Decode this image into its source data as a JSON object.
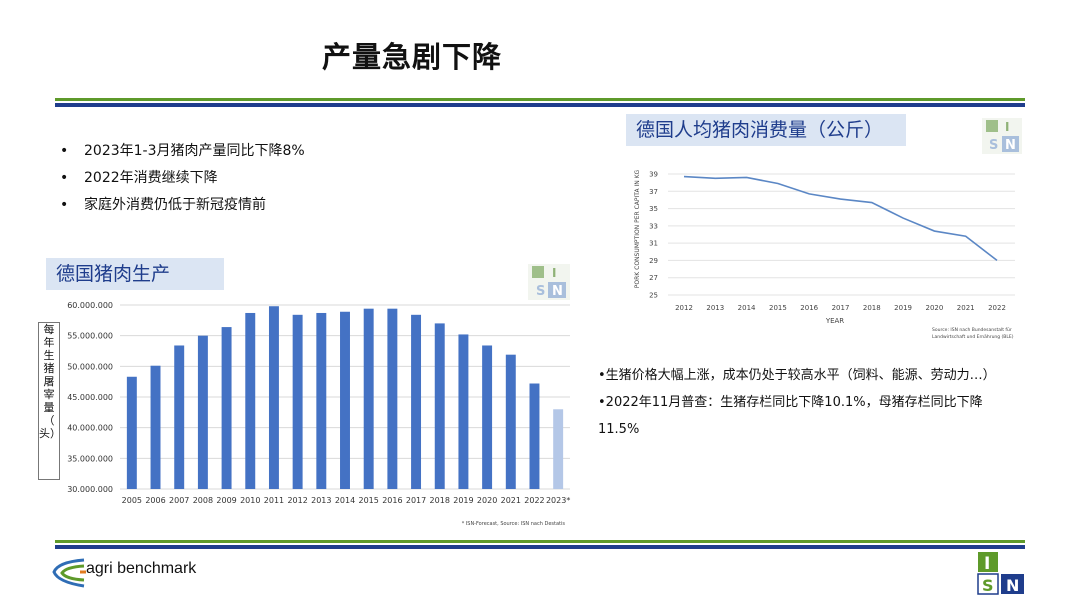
{
  "title": "产量急剧下降",
  "bullets": [
    "2023年1-3月猪肉产量同比下降8%",
    "2022年消费继续下降",
    "家庭外消费仍低于新冠疫情前"
  ],
  "right_bullets": {
    "line1": "•生猪价格大幅上涨，成本仍处于较高水平（饲料、能源、劳动力…）",
    "line2a": "•2022年11月普查：生猪存栏同比下降10.1%，母猪存栏同比下降",
    "line2b": "11.5%"
  },
  "footer": {
    "brand": "agri benchmark"
  },
  "colors": {
    "green": "#5e9a2a",
    "blue": "#1f3d8c",
    "bar": "#4472c4",
    "bar_forecast": "#b4c7e7",
    "label_bg": "#dbe5f3"
  },
  "chart_data": [
    {
      "type": "bar",
      "label": "德国猪肉生产",
      "ylabel": "每年生猪屠宰量（头）",
      "ylabel_chars": [
        "每",
        "年",
        "生",
        "猪",
        "屠",
        "宰",
        "量",
        "（",
        "头）"
      ],
      "categories": [
        "2005",
        "2006",
        "2007",
        "2008",
        "2009",
        "2010",
        "2011",
        "2012",
        "2013",
        "2014",
        "2015",
        "2016",
        "2017",
        "2018",
        "2019",
        "2020",
        "2021",
        "2022",
        "2023*"
      ],
      "values": [
        48300000,
        50100000,
        53400000,
        55000000,
        56400000,
        58700000,
        59800000,
        58400000,
        58700000,
        58900000,
        59400000,
        59400000,
        58400000,
        57000000,
        55200000,
        53400000,
        51900000,
        47200000,
        43000000
      ],
      "forecast_index": 18,
      "ylim": [
        30000000,
        60000000
      ],
      "yticks": [
        "30.000.000",
        "35.000.000",
        "40.000.000",
        "45.000.000",
        "50.000.000",
        "55.000.000",
        "60.000.000"
      ],
      "note": "* ISN-Forecast, Source: ISN nach Destatis",
      "grid": true
    },
    {
      "type": "line",
      "label": "德国人均猪肉消费量（公斤）",
      "xlabel": "YEAR",
      "ylabel": "PORK CONSUMPTION PER CAPITA IN KG",
      "x": [
        "2012",
        "2013",
        "2014",
        "2015",
        "2016",
        "2017",
        "2018",
        "2019",
        "2020",
        "2021",
        "2022"
      ],
      "y": [
        38.7,
        38.5,
        38.6,
        37.9,
        36.7,
        36.1,
        35.7,
        33.9,
        32.4,
        31.8,
        29.0
      ],
      "ylim": [
        25,
        39
      ],
      "yticks": [
        "25",
        "27",
        "29",
        "31",
        "33",
        "35",
        "37",
        "39"
      ],
      "source_line1": "Source: ISN nach Bundesanstalt für",
      "source_line2": "Landwirtschaft und Ernährung (BLE)",
      "grid": true
    }
  ]
}
